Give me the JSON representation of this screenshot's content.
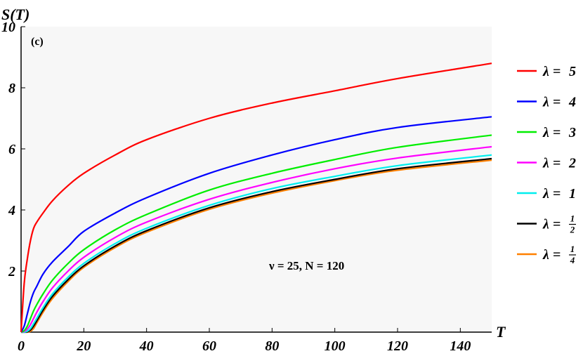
{
  "chart_data": {
    "type": "line",
    "panel_label": "(c)",
    "xlabel": "T",
    "ylabel": "S(T)",
    "xlim": [
      0,
      150
    ],
    "ylim": [
      0,
      10
    ],
    "x_ticks": [
      0,
      20,
      40,
      60,
      80,
      100,
      120,
      140
    ],
    "y_ticks": [
      2,
      4,
      6,
      8,
      10
    ],
    "annotation": "ν = 25, N = 120",
    "grid": false,
    "legend_position": "right",
    "x": [
      0,
      1,
      2,
      3,
      4,
      5,
      7,
      10,
      15,
      20,
      30,
      40,
      60,
      80,
      100,
      120,
      150
    ],
    "series": [
      {
        "name": "λ = 5",
        "lambda_display": "5",
        "color": "#ff0000",
        "values": [
          0.0,
          1.6,
          2.4,
          3.0,
          3.4,
          3.6,
          3.9,
          4.3,
          4.8,
          5.2,
          5.8,
          6.3,
          7.0,
          7.5,
          7.9,
          8.3,
          8.8
        ]
      },
      {
        "name": "λ = 4",
        "lambda_display": "4",
        "color": "#0000ff",
        "values": [
          0.0,
          0.2,
          0.6,
          1.0,
          1.3,
          1.5,
          1.9,
          2.3,
          2.8,
          3.3,
          3.9,
          4.4,
          5.2,
          5.8,
          6.3,
          6.7,
          7.05
        ]
      },
      {
        "name": "λ = 3",
        "lambda_display": "3",
        "color": "#00ee00",
        "values": [
          0.0,
          0.05,
          0.2,
          0.45,
          0.7,
          0.9,
          1.25,
          1.7,
          2.25,
          2.7,
          3.35,
          3.85,
          4.65,
          5.2,
          5.65,
          6.05,
          6.45
        ]
      },
      {
        "name": "λ = 2",
        "lambda_display": "2",
        "color": "#ff00ff",
        "values": [
          0.0,
          0.02,
          0.1,
          0.25,
          0.45,
          0.65,
          1.0,
          1.45,
          2.0,
          2.45,
          3.1,
          3.6,
          4.35,
          4.9,
          5.35,
          5.7,
          6.07
        ]
      },
      {
        "name": "λ = 1",
        "lambda_display": "1",
        "color": "#00eeee",
        "values": [
          0.0,
          0.0,
          0.03,
          0.12,
          0.28,
          0.45,
          0.8,
          1.25,
          1.8,
          2.25,
          2.9,
          3.4,
          4.15,
          4.7,
          5.1,
          5.45,
          5.8
        ]
      },
      {
        "name": "λ = 1/2",
        "lambda_display": "1/2",
        "color": "#000000",
        "values": [
          0.0,
          0.0,
          0.01,
          0.07,
          0.2,
          0.37,
          0.72,
          1.17,
          1.72,
          2.17,
          2.82,
          3.32,
          4.07,
          4.6,
          5.0,
          5.35,
          5.68
        ]
      },
      {
        "name": "λ = 1/4",
        "lambda_display": "1/4",
        "color": "#ff8000",
        "values": [
          0.0,
          0.0,
          0.0,
          0.03,
          0.12,
          0.3,
          0.65,
          1.1,
          1.66,
          2.12,
          2.77,
          3.27,
          4.02,
          4.55,
          4.96,
          5.3,
          5.63
        ]
      }
    ]
  }
}
